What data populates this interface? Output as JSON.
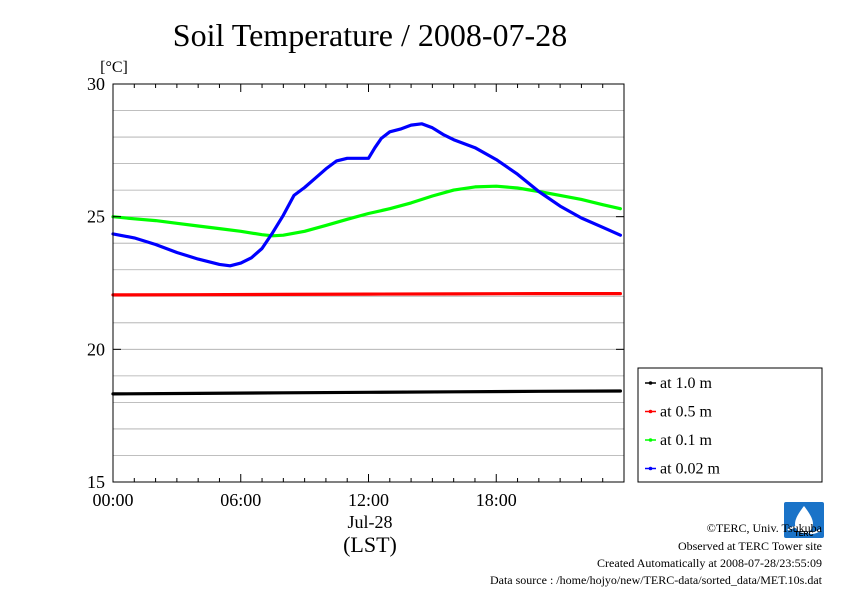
{
  "chart_data": {
    "type": "line",
    "title": "Soil Temperature / 2008-07-28",
    "ylabel": "[°C]",
    "xlabel": "(LST)",
    "x_date_label": "Jul-28",
    "ylim": [
      15,
      30
    ],
    "yticks": [
      15,
      20,
      25,
      30
    ],
    "xlim": [
      0,
      24
    ],
    "xticks": [
      0,
      6,
      12,
      18
    ],
    "xtick_labels": [
      "00:00",
      "06:00",
      "12:00",
      "18:00"
    ],
    "grid": true,
    "legend_position": "right",
    "series": [
      {
        "name": "at 1.0 m",
        "color": "#000000",
        "x": [
          0,
          4,
          8,
          12,
          16,
          20,
          23.83
        ],
        "y": [
          18.32,
          18.34,
          18.36,
          18.38,
          18.4,
          18.42,
          18.43
        ]
      },
      {
        "name": "at 0.5 m",
        "color": "#ff0000",
        "x": [
          0,
          4,
          8,
          12,
          16,
          20,
          23.83
        ],
        "y": [
          22.05,
          22.06,
          22.07,
          22.08,
          22.09,
          22.1,
          22.1
        ]
      },
      {
        "name": "at 0.1 m",
        "color": "#00ff00",
        "x": [
          0,
          1,
          2,
          3,
          4,
          5,
          6,
          7,
          7.5,
          8,
          9,
          10,
          11,
          12,
          13,
          14,
          15,
          16,
          17,
          18,
          19,
          20,
          21,
          22,
          23,
          23.83
        ],
        "y": [
          25.0,
          24.92,
          24.85,
          24.75,
          24.65,
          24.55,
          24.45,
          24.32,
          24.28,
          24.3,
          24.45,
          24.67,
          24.9,
          25.12,
          25.3,
          25.52,
          25.78,
          26.0,
          26.12,
          26.15,
          26.08,
          25.95,
          25.8,
          25.65,
          25.45,
          25.3
        ]
      },
      {
        "name": "at 0.02 m",
        "color": "#0000ff",
        "x": [
          0,
          1,
          2,
          3,
          4,
          5,
          5.5,
          6,
          6.5,
          7,
          7.5,
          8,
          8.5,
          9,
          9.5,
          10,
          10.5,
          11,
          11.5,
          12,
          12.3,
          12.6,
          13,
          13.5,
          14,
          14.5,
          15,
          15.5,
          16,
          17,
          18,
          19,
          20,
          21,
          22,
          23,
          23.83
        ],
        "y": [
          24.35,
          24.2,
          23.95,
          23.65,
          23.4,
          23.2,
          23.15,
          23.25,
          23.45,
          23.8,
          24.4,
          25.05,
          25.8,
          26.1,
          26.45,
          26.8,
          27.1,
          27.2,
          27.2,
          27.2,
          27.6,
          27.95,
          28.2,
          28.3,
          28.45,
          28.5,
          28.35,
          28.1,
          27.9,
          27.6,
          27.15,
          26.6,
          25.95,
          25.4,
          24.95,
          24.6,
          24.3
        ]
      }
    ],
    "footer": {
      "copyright": "©TERC, Univ. Tsukuba",
      "observed": "Observed at TERC Tower site",
      "created": "Created Automatically at 2008-07-28/23:55:09",
      "source": "Data source : /home/hojyo/new/TERC-data/sorted_data/MET.10s.dat",
      "logo_text": "TERC"
    }
  }
}
